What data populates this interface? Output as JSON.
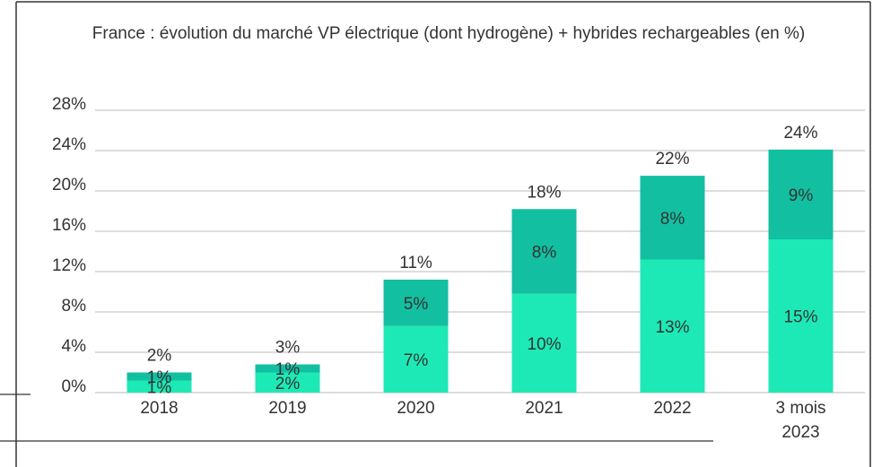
{
  "chart_data": {
    "type": "stacked_bar",
    "title": "France : évolution du marché VP électrique (dont hydrogène) + hybrides rechargeables (en %)",
    "categories": [
      "2018",
      "2019",
      "2020",
      "2021",
      "2022",
      "3 mois 2023"
    ],
    "series": [
      {
        "color": "#1de9b6",
        "values": [
          1.2,
          2.0,
          6.6,
          9.8,
          13.2,
          15.2
        ],
        "value_labels": [
          "1%",
          "2%",
          "7%",
          "10%",
          "13%",
          "15%"
        ]
      },
      {
        "color": "#13bfa1",
        "values": [
          0.8,
          0.8,
          4.6,
          8.4,
          8.3,
          8.9
        ],
        "value_labels": [
          "1%",
          "1%",
          "5%",
          "8%",
          "8%",
          "9%"
        ]
      }
    ],
    "totals": [
      2.0,
      2.8,
      11.2,
      18.2,
      21.5,
      24.1
    ],
    "total_labels": [
      "2%",
      "3%",
      "11%",
      "18%",
      "22%",
      "24%"
    ],
    "ylim": [
      0,
      28
    ],
    "yticks": [
      {
        "value": 0,
        "label": "0%"
      },
      {
        "value": 4,
        "label": "4%"
      },
      {
        "value": 8,
        "label": "8%"
      },
      {
        "value": 12,
        "label": "12%"
      },
      {
        "value": 16,
        "label": "16%"
      },
      {
        "value": 20,
        "label": "20%"
      },
      {
        "value": 24,
        "label": "24%"
      },
      {
        "value": 28,
        "label": "28%"
      }
    ],
    "grid": true
  }
}
